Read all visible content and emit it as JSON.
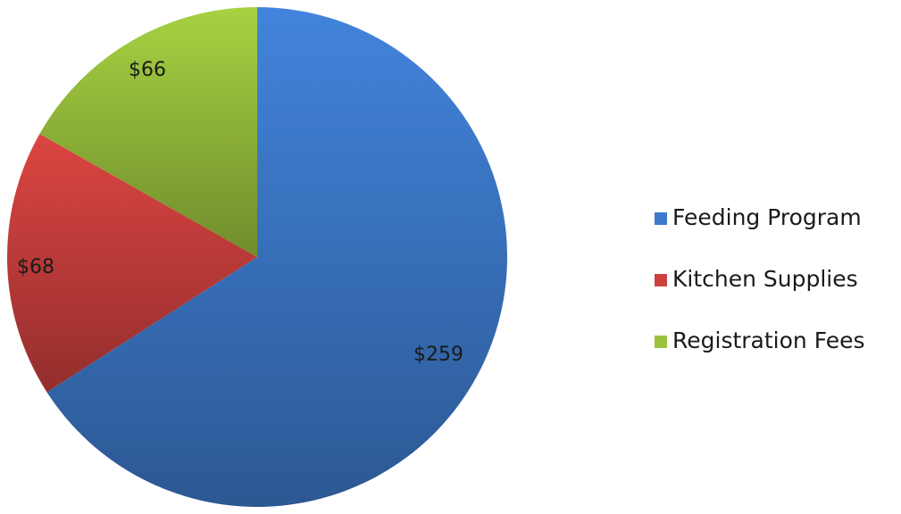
{
  "chart_data": {
    "type": "pie",
    "categories": [
      "Feeding Program",
      "Kitchen Supplies",
      "Registration Fees"
    ],
    "values": [
      259,
      68,
      66
    ],
    "data_labels": [
      "$259",
      "$68",
      "$66"
    ],
    "colors": [
      "#3d7acc",
      "#cc403d",
      "#9bc23d"
    ],
    "legend": {
      "position": "right",
      "entries": [
        "Feeding Program",
        "Kitchen Supplies",
        "Registration Fees"
      ]
    },
    "start_angle": "12 o'clock",
    "direction": "clockwise"
  }
}
